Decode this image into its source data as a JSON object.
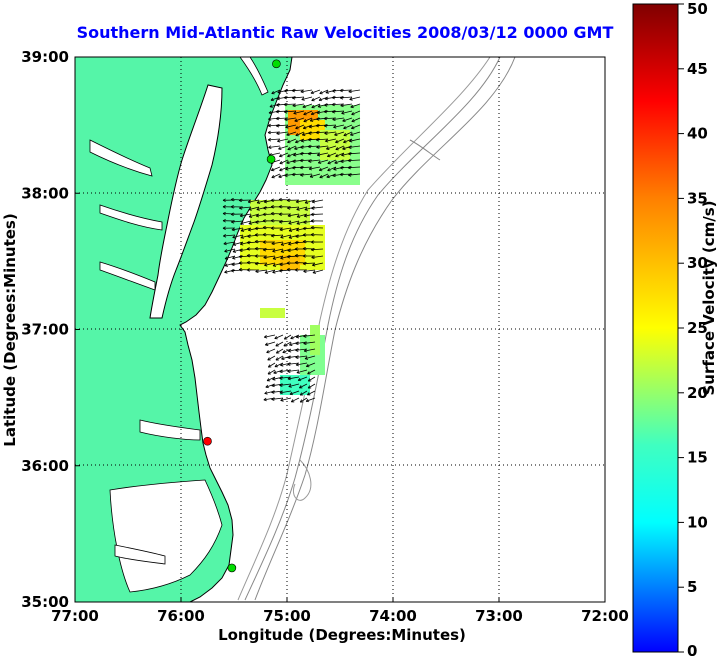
{
  "title": "Southern Mid-Atlantic Raw Velocities 2008/03/12 0000 GMT",
  "xlabel": "Longitude (Degrees:Minutes)",
  "ylabel": "Latitude (Degrees:Minutes)",
  "colorbar_label": "Surface Velocity (cm/s)",
  "x_ticks": [
    "77:00",
    "76:00",
    "75:00",
    "74:00",
    "73:00",
    "72:00"
  ],
  "y_ticks": [
    "39:00",
    "38:00",
    "37:00",
    "36:00",
    "35:00"
  ],
  "colorbar_ticks": [
    "50",
    "45",
    "40",
    "35",
    "30",
    "25",
    "20",
    "15",
    "10",
    "5",
    "0"
  ],
  "colors": {
    "title": "#0000ff",
    "land": "#55f5a8",
    "coastline": "#000000",
    "bathymetry": "#888888",
    "grid": "#000000"
  },
  "map": {
    "lon_range": [
      -77,
      -72
    ],
    "lat_range": [
      35,
      39
    ],
    "velocity_range_cm_s": [
      0,
      50
    ],
    "grid": "dotted",
    "stations": [
      {
        "lat": 38.95,
        "lon": -75.1,
        "color": "#00dd00"
      },
      {
        "lat": 38.25,
        "lon": -75.15,
        "color": "#00dd00"
      },
      {
        "lat": 36.18,
        "lon": -75.75,
        "color": "#ff0000"
      },
      {
        "lat": 35.25,
        "lon": -75.52,
        "color": "#00dd00"
      }
    ]
  }
}
